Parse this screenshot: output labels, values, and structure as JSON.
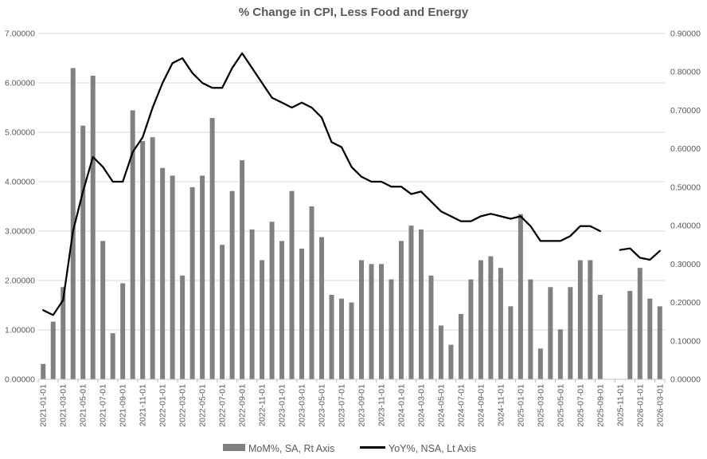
{
  "title": "% Change in CPI, Less Food and Energy",
  "colors": {
    "background": "#ffffff",
    "bar": "#808080",
    "line": "#000000",
    "text": "#595959",
    "gridline": "#d9d9d9",
    "axis_line": "#bfbfbf"
  },
  "chart_data": {
    "type": "combo",
    "title": "% Change in CPI, Less Food and Energy",
    "grid": "horizontal",
    "legend_position": "bottom",
    "x": [
      "2021-01-01",
      "2021-02-01",
      "2021-03-01",
      "2021-04-01",
      "2021-05-01",
      "2021-06-01",
      "2021-07-01",
      "2021-08-01",
      "2021-09-01",
      "2021-10-01",
      "2021-11-01",
      "2021-12-01",
      "2022-01-01",
      "2022-02-01",
      "2022-03-01",
      "2022-04-01",
      "2022-05-01",
      "2022-06-01",
      "2022-07-01",
      "2022-08-01",
      "2022-09-01",
      "2022-10-01",
      "2022-11-01",
      "2022-12-01",
      "2023-01-01",
      "2023-02-01",
      "2023-03-01",
      "2023-04-01",
      "2023-05-01",
      "2023-06-01",
      "2023-07-01",
      "2023-08-01",
      "2023-09-01",
      "2023-10-01",
      "2023-11-01",
      "2023-12-01",
      "2024-01-01",
      "2024-02-01",
      "2024-03-01",
      "2024-04-01",
      "2024-05-01",
      "2024-06-01",
      "2024-07-01",
      "2024-08-01",
      "2024-09-01",
      "2024-10-01",
      "2024-11-01",
      "2024-12-01",
      "2025-01-01",
      "2025-02-01",
      "2025-03-01",
      "2025-04-01",
      "2025-05-01",
      "2025-06-01",
      "2025-07-01",
      "2025-08-01",
      "2025-09-01",
      "2025-10-01",
      "2025-11-01",
      "2025-12-01",
      "2026-01-01",
      "2026-02-01",
      "2026-03-01"
    ],
    "x_tick_labels": [
      "2021-01-01",
      "2021-03-01",
      "2021-05-01",
      "2021-07-01",
      "2021-09-01",
      "2021-11-01",
      "2022-01-01",
      "2022-03-01",
      "2022-05-01",
      "2022-07-01",
      "2022-09-01",
      "2022-11-01",
      "2023-01-01",
      "2023-03-01",
      "2023-05-01",
      "2023-07-01",
      "2023-09-01",
      "2023-11-01",
      "2024-01-01",
      "2024-03-01",
      "2024-05-01",
      "2024-07-01",
      "2024-09-01",
      "2024-11-01",
      "2025-01-01",
      "2025-03-01",
      "2025-05-01",
      "2025-07-01",
      "2025-09-01",
      "2025-11-01",
      "2026-01-01",
      "2026-03-01"
    ],
    "series": [
      {
        "name": "MoM%, SA, Rt Axis",
        "type": "bar",
        "axis": "right",
        "color": "#808080",
        "values": [
          0.04,
          0.15,
          0.24,
          0.81,
          0.66,
          0.79,
          0.36,
          0.12,
          0.25,
          0.7,
          0.62,
          0.63,
          0.55,
          0.53,
          0.27,
          0.5,
          0.53,
          0.68,
          0.35,
          0.49,
          0.57,
          0.39,
          0.31,
          0.41,
          0.36,
          0.49,
          0.34,
          0.45,
          0.37,
          0.22,
          0.21,
          0.2,
          0.31,
          0.3,
          0.3,
          0.26,
          0.36,
          0.4,
          0.39,
          0.27,
          0.14,
          0.09,
          0.17,
          0.26,
          0.31,
          0.32,
          0.29,
          0.19,
          0.43,
          0.26,
          0.08,
          0.24,
          0.13,
          0.24,
          0.31,
          0.31,
          0.22,
          null,
          null,
          0.23,
          0.29,
          0.21,
          0.19
        ]
      },
      {
        "name": "YoY%, NSA, Lt Axis",
        "type": "line",
        "axis": "left",
        "color": "#000000",
        "values": [
          1.4,
          1.3,
          1.6,
          3.0,
          3.8,
          4.5,
          4.3,
          4.0,
          4.0,
          4.6,
          4.9,
          5.5,
          6.0,
          6.4,
          6.5,
          6.2,
          6.0,
          5.9,
          5.9,
          6.3,
          6.6,
          6.3,
          6.0,
          5.7,
          5.6,
          5.5,
          5.6,
          5.5,
          5.3,
          4.8,
          4.7,
          4.3,
          4.1,
          4.0,
          4.0,
          3.9,
          3.9,
          3.75,
          3.8,
          3.6,
          3.4,
          3.3,
          3.2,
          3.2,
          3.3,
          3.35,
          3.3,
          3.25,
          3.3,
          3.1,
          2.8,
          2.8,
          2.8,
          2.9,
          3.1,
          3.1,
          3.0,
          null,
          2.62,
          2.65,
          2.46,
          2.42,
          2.6
        ]
      }
    ],
    "axes": {
      "left": {
        "min": 0,
        "max": 7,
        "step": 1,
        "tick_labels": [
          "0.00000",
          "1.00000",
          "2.00000",
          "3.00000",
          "4.00000",
          "5.00000",
          "6.00000",
          "7.00000"
        ]
      },
      "right": {
        "min": 0,
        "max": 0.9,
        "step": 0.1,
        "tick_labels": [
          "0.00000",
          "0.10000",
          "0.20000",
          "0.30000",
          "0.40000",
          "0.50000",
          "0.60000",
          "0.70000",
          "0.80000",
          "0.90000"
        ]
      }
    }
  },
  "legend": {
    "bar_label": "MoM%, SA, Rt Axis",
    "line_label": "YoY%, NSA, Lt Axis"
  }
}
